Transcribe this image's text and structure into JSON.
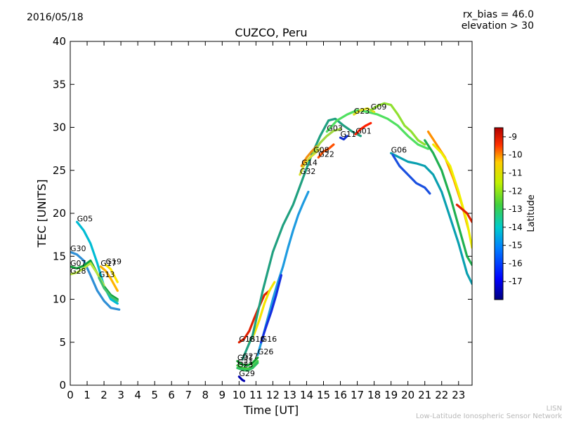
{
  "header": {
    "date": "2016/05/18",
    "rx_bias": "rx_bias = 46.0",
    "elevation": "elevation > 30"
  },
  "footer": {
    "line1": "LISN",
    "line2": "Low-Latitude Ionospheric Sensor Network"
  },
  "chart_data": {
    "type": "scatter",
    "title": "CUZCO, Peru",
    "xlabel": "Time [UT]",
    "ylabel": "TEC [UNITS]",
    "xlim": [
      0,
      23.8
    ],
    "ylim": [
      0,
      40
    ],
    "xticks": [
      "0",
      "1",
      "2",
      "3",
      "4",
      "5",
      "6",
      "7",
      "8",
      "9",
      "10",
      "11",
      "12",
      "13",
      "14",
      "15",
      "16",
      "17",
      "18",
      "19",
      "20",
      "21",
      "22",
      "23"
    ],
    "yticks": [
      "0",
      "5",
      "10",
      "15",
      "20",
      "25",
      "30",
      "35",
      "40"
    ],
    "grid": false,
    "colorbar": {
      "label": "Latitude",
      "range": [
        -18,
        -8.5
      ],
      "ticks": [
        "-9",
        "-10",
        "-11",
        "-12",
        "-13",
        "-14",
        "-15",
        "-16",
        "-17"
      ],
      "colormap": [
        "#00007f",
        "#0000ff",
        "#007fff",
        "#00ffff",
        "#7fff7f",
        "#ffff00",
        "#ff7f00",
        "#ff0000",
        "#7f0000"
      ]
    },
    "series": [
      {
        "name": "G05",
        "color": "#00bcd4",
        "x": [
          0.4,
          0.8,
          1.2,
          1.6,
          2.0,
          2.4,
          2.8
        ],
        "y": [
          19.0,
          18.0,
          16.5,
          14.2,
          11.5,
          10.0,
          9.5
        ]
      },
      {
        "name": "G30",
        "color": "#2f8fd6",
        "x": [
          0.0,
          0.4,
          0.8,
          1.2,
          1.6,
          2.0,
          2.4,
          2.9
        ],
        "y": [
          15.5,
          15.2,
          14.5,
          12.8,
          11.0,
          9.8,
          9.0,
          8.8
        ]
      },
      {
        "name": "G07",
        "color": "#10a23a",
        "x": [
          0.0,
          0.4,
          0.8,
          1.2,
          1.6,
          2.0,
          2.4,
          2.8
        ],
        "y": [
          13.8,
          13.6,
          13.9,
          14.5,
          13.0,
          11.5,
          10.5,
          10.0
        ]
      },
      {
        "name": "G28",
        "color": "#b9e640",
        "x": [
          0.0,
          0.4,
          0.8,
          1.2,
          1.6,
          2.0
        ],
        "y": [
          12.9,
          13.1,
          13.6,
          14.2,
          13.0,
          11.6
        ]
      },
      {
        "name": "G17",
        "color": "#ffb300",
        "x": [
          1.8,
          2.1,
          2.4,
          2.8
        ],
        "y": [
          13.8,
          13.3,
          12.4,
          11.0
        ]
      },
      {
        "name": "G19",
        "color": "#ffe600",
        "x": [
          2.1,
          2.4,
          2.8
        ],
        "y": [
          14.0,
          13.5,
          12.0
        ]
      },
      {
        "name": "G13",
        "color": "#40c070",
        "x": [
          1.7,
          2.0,
          2.4,
          2.8
        ],
        "y": [
          12.5,
          11.3,
          10.3,
          9.8
        ]
      },
      {
        "name": "G18",
        "color": "#e02000",
        "x": [
          10.0,
          10.3,
          10.6,
          10.9,
          11.2,
          11.5,
          11.8
        ],
        "y": [
          5.0,
          5.4,
          6.3,
          7.8,
          9.2,
          10.5,
          11.0
        ]
      },
      {
        "name": "G10",
        "color": "#f5e600",
        "x": [
          10.6,
          10.9,
          11.2,
          11.5,
          11.8,
          12.1
        ],
        "y": [
          5.0,
          6.0,
          7.6,
          9.5,
          11.0,
          12.0
        ]
      },
      {
        "name": "G26",
        "color": "#1e9be0",
        "x": [
          11.1,
          11.4,
          11.7,
          12.0,
          12.3,
          12.6,
          12.9,
          13.2,
          13.5,
          13.8,
          14.1
        ],
        "y": [
          3.5,
          5.6,
          7.8,
          10.0,
          12.0,
          13.8,
          16.0,
          18.0,
          19.8,
          21.2,
          22.5
        ]
      },
      {
        "name": "G16",
        "color": "#1530e0",
        "x": [
          11.3,
          11.6,
          11.9,
          12.2,
          12.5
        ],
        "y": [
          5.0,
          6.8,
          8.5,
          10.5,
          12.8
        ]
      },
      {
        "name": "G29",
        "color": "#0000b0",
        "x": [
          10.0,
          10.1,
          10.2,
          10.3
        ],
        "y": [
          1.0,
          0.8,
          0.6,
          0.5
        ]
      },
      {
        "name": "G31",
        "color": "#10a030",
        "x": [
          9.9,
          10.2,
          10.5,
          10.8,
          11.1
        ],
        "y": [
          2.8,
          2.4,
          2.3,
          2.6,
          3.2
        ]
      },
      {
        "name": "G21",
        "color": "#40d040",
        "x": [
          9.9,
          10.2,
          10.5,
          10.8,
          11.1
        ],
        "y": [
          2.3,
          2.0,
          1.9,
          2.2,
          2.8
        ]
      },
      {
        "name": "G23",
        "color": "#30c060",
        "x": [
          9.9,
          10.2,
          10.5,
          10.8,
          11.1
        ],
        "y": [
          2.0,
          1.8,
          1.7,
          2.0,
          2.6
        ]
      },
      {
        "name": "G27",
        "color": "#20a080",
        "x": [
          10.2,
          10.8,
          11.4,
          12.0,
          12.6,
          13.2,
          13.8,
          14.3,
          14.8,
          15.3,
          15.7,
          16.2,
          16.7,
          17.2
        ],
        "y": [
          3.0,
          5.8,
          11.0,
          15.5,
          18.6,
          21.0,
          24.2,
          26.8,
          29.0,
          30.8,
          31.0,
          30.2,
          29.5,
          29.0
        ]
      },
      {
        "name": "G32",
        "color": "#d8e030",
        "x": [
          13.6,
          13.9,
          14.2,
          14.5,
          14.8
        ],
        "y": [
          24.5,
          25.8,
          26.5,
          27.0,
          27.5
        ]
      },
      {
        "name": "G14",
        "color": "#f09010",
        "x": [
          13.7,
          14.0,
          14.3,
          14.6
        ],
        "y": [
          25.5,
          26.5,
          27.2,
          27.8
        ]
      },
      {
        "name": "G22",
        "color": "#ff5000",
        "x": [
          14.7,
          15.0,
          15.3,
          15.6
        ],
        "y": [
          26.5,
          27.2,
          27.5,
          28.0
        ]
      },
      {
        "name": "G08",
        "color": "#a0d840",
        "x": [
          14.4,
          14.8,
          15.2,
          15.6,
          16.0
        ],
        "y": [
          27.0,
          28.2,
          29.0,
          29.6,
          29.8
        ]
      },
      {
        "name": "G11",
        "color": "#1030d0",
        "x": [
          16.0,
          16.2,
          16.4
        ],
        "y": [
          28.8,
          28.6,
          29.0
        ]
      },
      {
        "name": "G03",
        "color": "#50e060",
        "x": [
          15.2,
          15.8,
          16.4,
          17.0,
          17.6,
          18.2,
          18.8,
          19.4,
          20.0,
          20.6,
          21.2
        ],
        "y": [
          29.5,
          30.8,
          31.5,
          32.0,
          31.8,
          31.5,
          31.0,
          30.2,
          29.0,
          28.0,
          27.5
        ]
      },
      {
        "name": "G01",
        "color": "#ff2000",
        "x": [
          16.9,
          17.2,
          17.5,
          17.8
        ],
        "y": [
          29.2,
          29.8,
          30.2,
          30.5
        ]
      },
      {
        "name": "G23",
        "color": "#e0e020",
        "x": [
          16.8,
          17.2,
          17.6,
          18.0
        ],
        "y": [
          31.5,
          32.0,
          32.2,
          31.8
        ]
      },
      {
        "name": "G09",
        "color": "#90e030",
        "x": [
          17.8,
          18.2,
          18.6,
          19.0,
          19.4,
          19.8,
          20.2,
          20.6,
          21.0
        ],
        "y": [
          32.0,
          32.5,
          32.8,
          32.6,
          31.5,
          30.2,
          29.5,
          28.5,
          28.0
        ]
      },
      {
        "name": "G06",
        "color": "#0aa0b0",
        "x": [
          19.0,
          19.5,
          20.0,
          20.5,
          21.0,
          21.5,
          22.0,
          22.5,
          23.0,
          23.5,
          23.8
        ],
        "y": [
          27.0,
          26.5,
          26.0,
          25.8,
          25.5,
          24.5,
          22.5,
          19.5,
          16.5,
          13.0,
          11.8
        ]
      },
      {
        "name": "",
        "color": "#1a50e0",
        "x": [
          19.1,
          19.5,
          20.0,
          20.5,
          21.0,
          21.3
        ],
        "y": [
          26.8,
          25.5,
          24.5,
          23.5,
          23.0,
          22.3
        ]
      },
      {
        "name": "",
        "color": "#ff9000",
        "x": [
          21.2,
          21.7,
          22.2,
          22.7,
          23.2,
          23.6
        ],
        "y": [
          29.5,
          28.0,
          26.5,
          24.0,
          21.0,
          18.0
        ]
      },
      {
        "name": "",
        "color": "#f0f000",
        "x": [
          21.5,
          22.0,
          22.5,
          23.0,
          23.5,
          23.8
        ],
        "y": [
          28.0,
          27.0,
          25.5,
          22.5,
          19.0,
          16.0
        ]
      },
      {
        "name": "",
        "color": "#e02000",
        "x": [
          22.9,
          23.2,
          23.5,
          23.8
        ],
        "y": [
          21.0,
          20.5,
          20.0,
          19.0
        ]
      },
      {
        "name": "",
        "color": "#20b050",
        "x": [
          21.0,
          21.5,
          22.0,
          22.5,
          23.0,
          23.5,
          23.8
        ],
        "y": [
          28.5,
          27.0,
          25.0,
          22.0,
          18.5,
          15.0,
          14.0
        ]
      }
    ]
  }
}
